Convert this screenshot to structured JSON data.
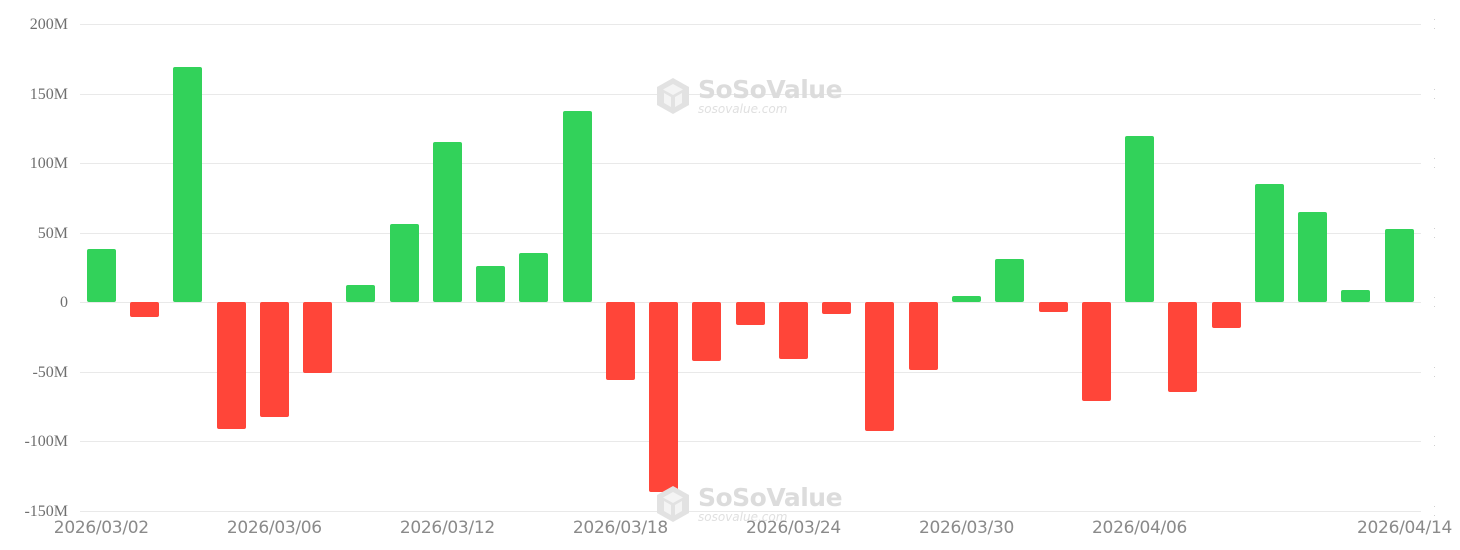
{
  "chart_data": {
    "type": "bar",
    "title": "",
    "xlabel": "",
    "ylabel": "",
    "ylim": [
      -150,
      200
    ],
    "y_unit": "M",
    "y_ticks": [
      200,
      150,
      100,
      50,
      0,
      -50,
      -100,
      -150
    ],
    "y_tick_labels": [
      "200M",
      "150M",
      "100M",
      "50M",
      "0",
      "-50M",
      "-100M",
      "-150M"
    ],
    "x_tick_labels": [
      "2026/03/02",
      "2026/03/06",
      "2026/03/12",
      "2026/03/18",
      "2026/03/24",
      "2026/03/30",
      "2026/04/06",
      "2026/04/14"
    ],
    "grid": true,
    "legend": null,
    "categories": [
      "2026/03/02",
      "2026/03/03",
      "2026/03/04",
      "2026/03/05",
      "2026/03/06",
      "2026/03/09",
      "2026/03/10",
      "2026/03/11",
      "2026/03/12",
      "2026/03/13",
      "2026/03/16",
      "2026/03/17",
      "2026/03/18",
      "2026/03/19",
      "2026/03/20",
      "2026/03/23",
      "2026/03/24",
      "2026/03/25",
      "2026/03/26",
      "2026/03/27",
      "2026/03/30",
      "2026/03/31",
      "2026/04/01",
      "2026/04/02",
      "2026/04/06",
      "2026/04/07",
      "2026/04/08",
      "2026/04/09",
      "2026/04/10",
      "2026/04/13",
      "2026/04/14"
    ],
    "values": [
      38.2,
      -10.8,
      169.0,
      -90.9,
      -82.8,
      -50.9,
      12.1,
      56.5,
      115.0,
      26.0,
      35.6,
      137.5,
      -55.7,
      -136.0,
      -41.9,
      -16.0,
      -40.9,
      -8.4,
      -92.7,
      -48.6,
      4.7,
      30.8,
      -7.0,
      -71.0,
      119.8,
      -64.6,
      -18.4,
      84.9,
      64.6,
      8.8,
      52.8
    ],
    "colors": {
      "positive": "#32D25A",
      "negative": "#FF4539"
    }
  },
  "watermark": {
    "brand": "SoSoValue",
    "url": "sosovalue.com"
  },
  "style": {
    "grid_color": "#e9e9e9",
    "axis_label_color": "#6f6f6f"
  }
}
